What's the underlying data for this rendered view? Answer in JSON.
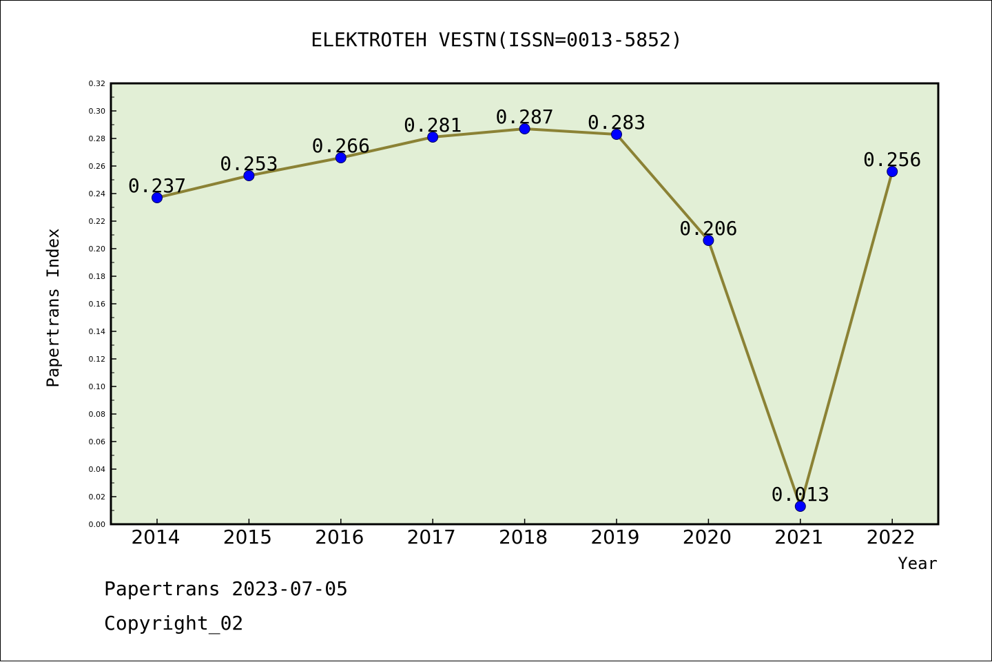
{
  "chart_data": {
    "type": "line",
    "title": "ELEKTROTEH VESTN(ISSN=0013-5852)",
    "xlabel": "Year",
    "ylabel": "Papertrans Index",
    "categories": [
      "2014",
      "2015",
      "2016",
      "2017",
      "2018",
      "2019",
      "2020",
      "2021",
      "2022"
    ],
    "series": [
      {
        "values": [
          0.237,
          0.253,
          0.266,
          0.281,
          0.287,
          0.283,
          0.206,
          0.013,
          0.256
        ],
        "labels": [
          "0.237",
          "0.253",
          "0.266",
          "0.281",
          "0.287",
          "0.283",
          "0.206",
          "0.013",
          "0.256"
        ]
      }
    ],
    "ylim": [
      0,
      0.32
    ],
    "yticks": [
      "0.00",
      "0.02",
      "0.04",
      "0.06",
      "0.08",
      "0.10",
      "0.12",
      "0.14",
      "0.16",
      "0.18",
      "0.20",
      "0.22",
      "0.24",
      "0.26",
      "0.28",
      "0.30",
      "0.32"
    ],
    "grid": false,
    "colors": {
      "plot_background": "#e2efd6",
      "line": "#8b8235",
      "marker": "#0000ff",
      "axis": "#000000"
    }
  },
  "footer": {
    "line1": "Papertrans 2023-07-05",
    "line2": "Copyright_02"
  }
}
